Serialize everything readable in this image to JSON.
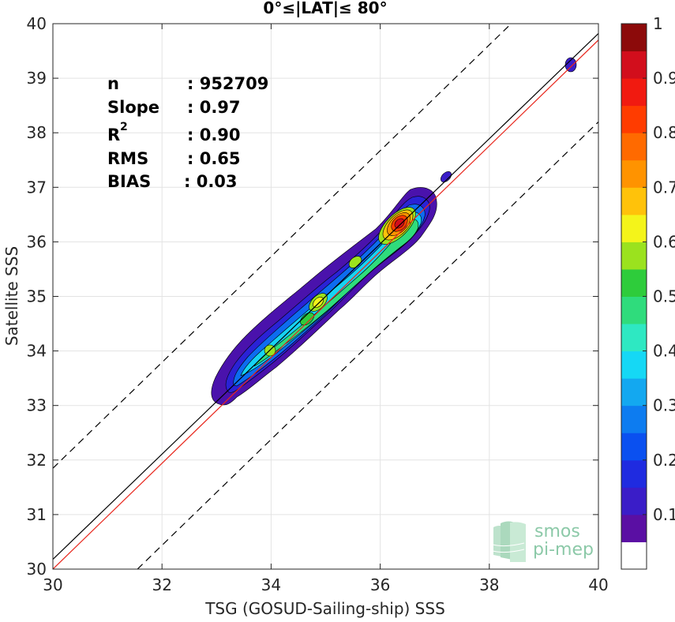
{
  "chart_data": {
    "type": "heatmap",
    "title": "0°≤|LAT|≤ 80°",
    "xlabel": "TSG (GOSUD-Sailing-ship) SSS",
    "ylabel": "Satellite SSS",
    "xlim": [
      30,
      40
    ],
    "ylim": [
      30,
      40
    ],
    "x_ticks": [
      "30",
      "32",
      "34",
      "36",
      "38",
      "40"
    ],
    "y_ticks": [
      "30",
      "31",
      "32",
      "33",
      "34",
      "35",
      "36",
      "37",
      "38",
      "39",
      "40"
    ],
    "grid": true,
    "stats": [
      {
        "label": "n",
        "value": ": 952709"
      },
      {
        "label": "Slope",
        "value": ": 0.97"
      },
      {
        "label": "R",
        "sup": "2",
        "value": ": 0.90"
      },
      {
        "label": "RMS",
        "value": ": 0.65"
      },
      {
        "label": "BIAS",
        "value": ": 0.03"
      }
    ],
    "lines": [
      {
        "name": "identity",
        "color": "#000000",
        "style": "solid",
        "x": [
          30,
          40
        ],
        "y": [
          30.18,
          39.82
        ]
      },
      {
        "name": "regression",
        "color": "#e8261c",
        "style": "solid",
        "x": [
          30,
          40
        ],
        "y": [
          30.0,
          39.7
        ]
      },
      {
        "name": "upper-bound",
        "color": "#000000",
        "style": "dashed",
        "x": [
          30,
          38.4
        ],
        "y": [
          31.85,
          40.0
        ]
      },
      {
        "name": "lower-bound",
        "color": "#000000",
        "style": "dashed",
        "x": [
          31.55,
          40
        ],
        "y": [
          30.0,
          38.2
        ]
      }
    ],
    "density_peaks": [
      {
        "x": 36.35,
        "y": 36.32,
        "density": 1.0
      },
      {
        "x": 34.85,
        "y": 34.82,
        "density": 0.62
      },
      {
        "x": 35.6,
        "y": 35.55,
        "density": 0.5
      },
      {
        "x": 33.95,
        "y": 33.98,
        "density": 0.5
      },
      {
        "x": 37.2,
        "y": 37.18,
        "density": 0.15
      },
      {
        "x": 39.5,
        "y": 39.25,
        "density": 0.1
      }
    ],
    "colorbar": {
      "ticks": [
        "0.1",
        "0.2",
        "0.3",
        "0.4",
        "0.5",
        "0.6",
        "0.7",
        "0.8",
        "0.9",
        "1"
      ],
      "levels": [
        "#ffffff",
        "#5a0fa3",
        "#3a1dc8",
        "#1f2be0",
        "#0a50f0",
        "#0d7cf0",
        "#13a8f0",
        "#15d8f5",
        "#2ee8c2",
        "#2fdc7c",
        "#2ecc3b",
        "#9be21e",
        "#f4f41a",
        "#ffc20a",
        "#ff9300",
        "#ff6a00",
        "#ff3c00",
        "#f11a10",
        "#d20e1c",
        "#8c0a0a"
      ]
    }
  },
  "logo": {
    "line1": "smos",
    "line2": "pi-mep"
  }
}
